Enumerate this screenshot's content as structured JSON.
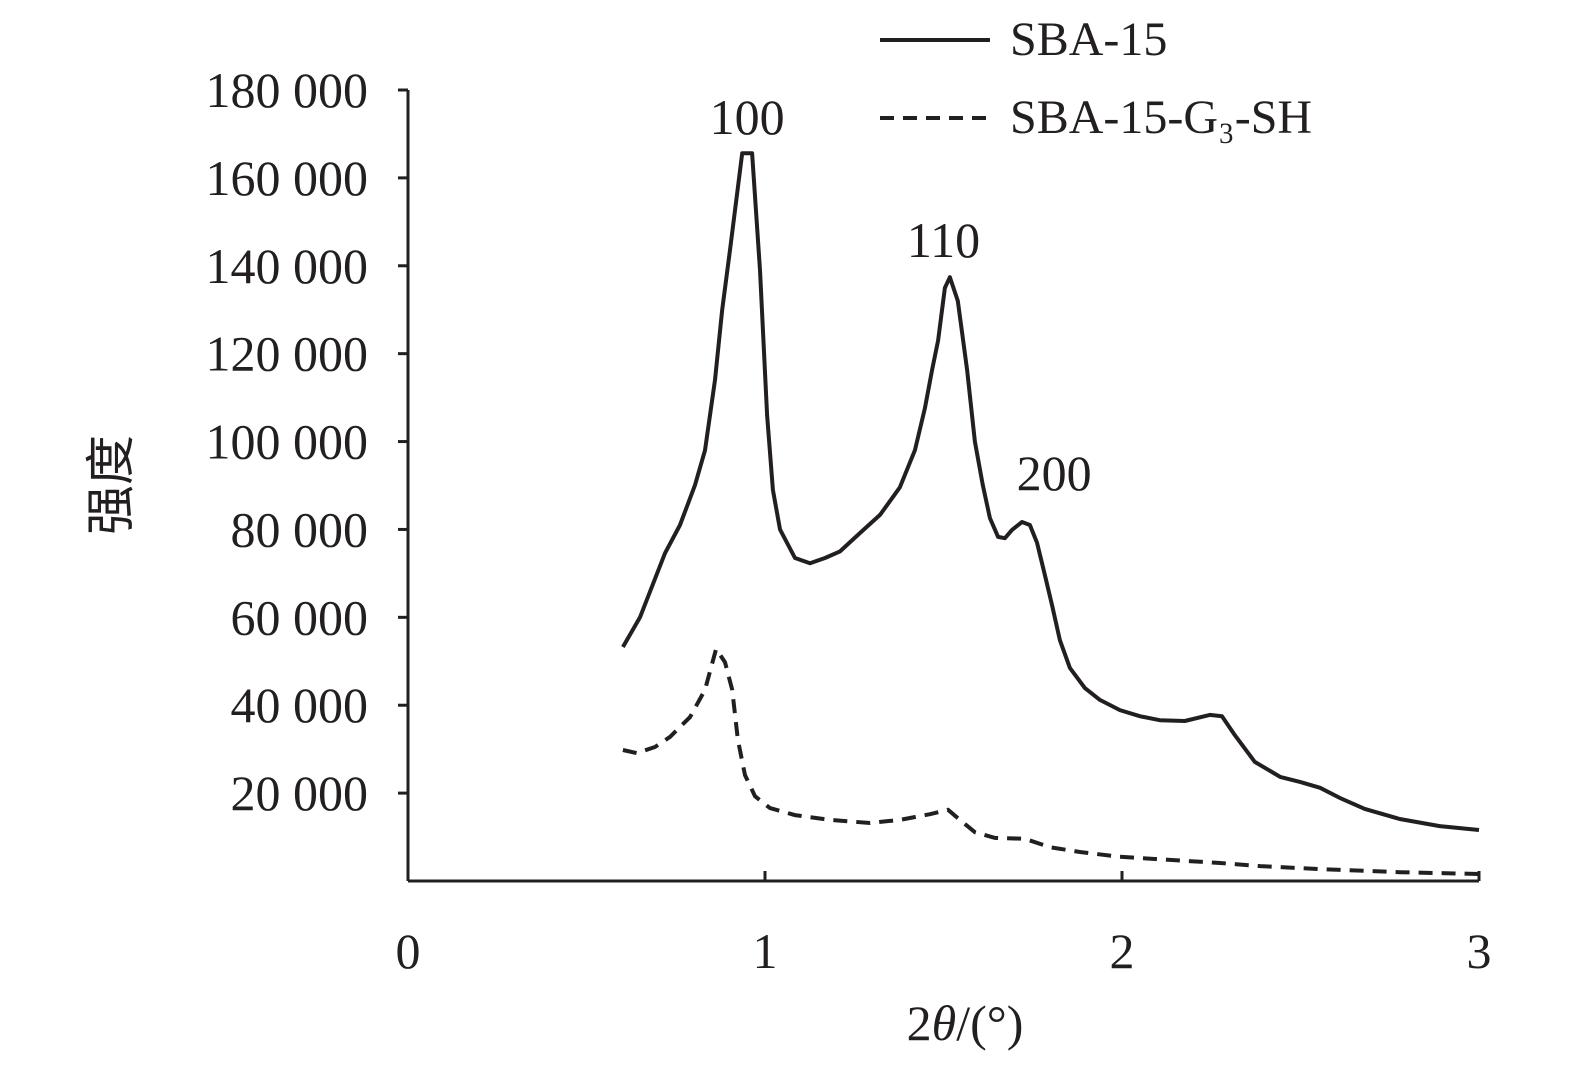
{
  "chart_data": {
    "type": "line",
    "title": "",
    "xlabel": "2θ/(°)",
    "xlabel_parts": [
      "2",
      "θ",
      "/(°)"
    ],
    "ylabel": "强度",
    "xlim": [
      0,
      3
    ],
    "ylim": [
      0,
      180000
    ],
    "xticks": [
      0,
      1,
      2,
      3
    ],
    "xtick_labels": [
      "0",
      "1",
      "2",
      "3"
    ],
    "yticks": [
      20000,
      40000,
      60000,
      80000,
      100000,
      120000,
      140000,
      160000,
      180000
    ],
    "ytick_labels": [
      "20 000",
      "40 000",
      "60 000",
      "80 000",
      "100 000",
      "120 000",
      "140 000",
      "160 000",
      "180 000"
    ],
    "grid": false,
    "legend_position": "top-right",
    "series": [
      {
        "name": "SBA-15",
        "style": "solid",
        "x": [
          0.602,
          0.65,
          0.72,
          0.762,
          0.804,
          0.832,
          0.86,
          0.88,
          0.902,
          0.936,
          0.964,
          0.986,
          1.006,
          1.022,
          1.042,
          1.084,
          1.126,
          1.168,
          1.21,
          1.266,
          1.322,
          1.378,
          1.42,
          1.448,
          1.468,
          1.485,
          1.504,
          1.518,
          1.54,
          1.566,
          1.588,
          1.61,
          1.63,
          1.653,
          1.672,
          1.692,
          1.72,
          1.742,
          1.762,
          1.784,
          1.804,
          1.826,
          1.854,
          1.896,
          1.938,
          1.994,
          2.05,
          2.106,
          2.176,
          2.246,
          2.28,
          2.316,
          2.372,
          2.443,
          2.5,
          2.555,
          2.61,
          2.68,
          2.778,
          2.89,
          3.0
        ],
        "y": [
          53240,
          60000,
          74600,
          81000,
          90100,
          98000,
          114000,
          130000,
          143600,
          165600,
          165600,
          139000,
          106000,
          89000,
          80000,
          73500,
          72300,
          73500,
          75000,
          79200,
          83300,
          89600,
          98000,
          107600,
          116300,
          123000,
          135000,
          137400,
          132000,
          116300,
          100000,
          90100,
          82600,
          78300,
          78000,
          79900,
          81700,
          81000,
          77000,
          69600,
          62800,
          54800,
          48500,
          43900,
          41200,
          38900,
          37500,
          36600,
          36400,
          37800,
          37500,
          33200,
          27100,
          23700,
          22500,
          21200,
          18900,
          16400,
          14100,
          12500,
          11600
        ]
      },
      {
        "name": "SBA-15-G₃-SH",
        "style": "dashed",
        "x": [
          0.602,
          0.641,
          0.692,
          0.734,
          0.79,
          0.832,
          0.863,
          0.888,
          0.908,
          0.924,
          0.944,
          0.972,
          1.014,
          1.084,
          1.182,
          1.294,
          1.378,
          1.462,
          1.513,
          1.546,
          1.588,
          1.644,
          1.728,
          1.798,
          1.882,
          1.994,
          2.134,
          2.275,
          2.387,
          2.555,
          2.779,
          3.0
        ],
        "y": [
          29800,
          29100,
          30500,
          32800,
          37300,
          43500,
          52800,
          49800,
          43500,
          32100,
          24100,
          19300,
          16600,
          15000,
          13900,
          13200,
          13900,
          15200,
          16200,
          13900,
          11100,
          9800,
          9600,
          7700,
          6600,
          5500,
          4800,
          4100,
          3400,
          2700,
          2000,
          1600
        ]
      }
    ],
    "annotations": [
      {
        "text": "100",
        "x": 0.95,
        "y": 170000
      },
      {
        "text": "110",
        "x": 1.5,
        "y": 142000
      },
      {
        "text": "200",
        "x": 1.81,
        "y": 89000
      }
    ]
  }
}
